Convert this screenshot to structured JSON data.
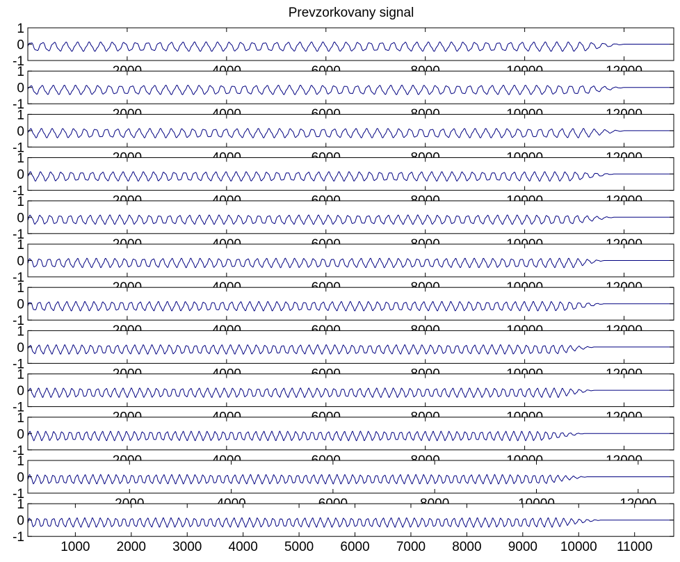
{
  "figure": {
    "title": "Prevzorkovany signal"
  },
  "chart_data": {
    "type": "line",
    "title": "Prevzorkovany signal",
    "layout": "12 stacked subplots sharing one style",
    "line_color": "#000080",
    "grid": false,
    "legend": "none",
    "ylim": [
      -1,
      1
    ],
    "y_ticks": [
      1,
      0,
      -1
    ],
    "y_tick_labels": [
      "1",
      "0",
      "-1"
    ],
    "panels": [
      {
        "index": 1,
        "xlim": [
          0,
          13000
        ],
        "x_ticks": [
          2000,
          4000,
          6000,
          8000,
          10000,
          12000
        ],
        "x_tick_labels": [
          "2000",
          "4000",
          "6000",
          "8000",
          "10000",
          "12000"
        ],
        "cycles": 51,
        "decay_start": 11200,
        "decay_end": 12000,
        "amplitude": 0.25,
        "offset": -0.15
      },
      {
        "index": 2,
        "xlim": [
          0,
          13000
        ],
        "x_ticks": [
          2000,
          4000,
          6000,
          8000,
          10000,
          12000
        ],
        "x_tick_labels": [
          "2000",
          "4000",
          "6000",
          "8000",
          "10000",
          "12000"
        ],
        "cycles": 53,
        "decay_start": 11200,
        "decay_end": 12000,
        "amplitude": 0.25,
        "offset": -0.15
      },
      {
        "index": 3,
        "xlim": [
          0,
          13000
        ],
        "x_ticks": [
          2000,
          4000,
          6000,
          8000,
          10000,
          12000
        ],
        "x_tick_labels": [
          "2000",
          "4000",
          "6000",
          "8000",
          "10000",
          "12000"
        ],
        "cycles": 55,
        "decay_start": 11200,
        "decay_end": 12000,
        "amplitude": 0.25,
        "offset": -0.15
      },
      {
        "index": 4,
        "xlim": [
          0,
          13000
        ],
        "x_ticks": [
          2000,
          4000,
          6000,
          8000,
          10000,
          12000
        ],
        "x_tick_labels": [
          "2000",
          "4000",
          "6000",
          "8000",
          "10000",
          "12000"
        ],
        "cycles": 57,
        "decay_start": 11000,
        "decay_end": 11800,
        "amplitude": 0.25,
        "offset": -0.15
      },
      {
        "index": 5,
        "xlim": [
          0,
          13000
        ],
        "x_ticks": [
          2000,
          4000,
          6000,
          8000,
          10000,
          12000
        ],
        "x_tick_labels": [
          "2000",
          "4000",
          "6000",
          "8000",
          "10000",
          "12000"
        ],
        "cycles": 59,
        "decay_start": 11000,
        "decay_end": 11800,
        "amplitude": 0.25,
        "offset": -0.15
      },
      {
        "index": 6,
        "xlim": [
          0,
          13000
        ],
        "x_ticks": [
          2000,
          4000,
          6000,
          8000,
          10000,
          12000
        ],
        "x_tick_labels": [
          "2000",
          "4000",
          "6000",
          "8000",
          "10000",
          "12000"
        ],
        "cycles": 61,
        "decay_start": 11000,
        "decay_end": 11600,
        "amplitude": 0.25,
        "offset": -0.15
      },
      {
        "index": 7,
        "xlim": [
          0,
          13000
        ],
        "x_ticks": [
          2000,
          4000,
          6000,
          8000,
          10000,
          12000
        ],
        "x_tick_labels": [
          "2000",
          "4000",
          "6000",
          "8000",
          "10000",
          "12000"
        ],
        "cycles": 63,
        "decay_start": 10900,
        "decay_end": 11600,
        "amplitude": 0.25,
        "offset": -0.15
      },
      {
        "index": 8,
        "xlim": [
          0,
          13000
        ],
        "x_ticks": [
          2000,
          4000,
          6000,
          8000,
          10000,
          12000
        ],
        "x_tick_labels": [
          "2000",
          "4000",
          "6000",
          "8000",
          "10000",
          "12000"
        ],
        "cycles": 65,
        "decay_start": 10700,
        "decay_end": 11400,
        "amplitude": 0.25,
        "offset": -0.15
      },
      {
        "index": 9,
        "xlim": [
          0,
          13000
        ],
        "x_ticks": [
          2000,
          4000,
          6000,
          8000,
          10000,
          12000
        ],
        "x_tick_labels": [
          "2000",
          "4000",
          "6000",
          "8000",
          "10000",
          "12000"
        ],
        "cycles": 67,
        "decay_start": 10700,
        "decay_end": 11400,
        "amplitude": 0.25,
        "offset": -0.15
      },
      {
        "index": 10,
        "xlim": [
          0,
          13000
        ],
        "x_ticks": [
          2000,
          4000,
          6000,
          8000,
          10000,
          12000
        ],
        "x_tick_labels": [
          "2000",
          "4000",
          "6000",
          "8000",
          "10000",
          "12000"
        ],
        "cycles": 69,
        "decay_start": 10400,
        "decay_end": 11200,
        "amplitude": 0.25,
        "offset": -0.15
      },
      {
        "index": 11,
        "xlim": [
          0,
          12700
        ],
        "x_ticks": [
          2000,
          4000,
          6000,
          8000,
          10000,
          12000
        ],
        "x_tick_labels": [
          "2000",
          "4000",
          "6000",
          "8000",
          "10000",
          "12000"
        ],
        "cycles": 71,
        "decay_start": 10200,
        "decay_end": 11000,
        "amplitude": 0.25,
        "offset": -0.15
      },
      {
        "index": 12,
        "xlim": [
          150,
          11700
        ],
        "x_ticks": [
          1000,
          2000,
          3000,
          4000,
          5000,
          6000,
          7000,
          8000,
          9000,
          10000,
          11000
        ],
        "x_tick_labels": [
          "1000",
          "2000",
          "3000",
          "4000",
          "5000",
          "6000",
          "7000",
          "8000",
          "9000",
          "10000",
          "11000"
        ],
        "cycles": 73,
        "decay_start": 9600,
        "decay_end": 10400,
        "amplitude": 0.25,
        "offset": -0.15
      }
    ]
  }
}
